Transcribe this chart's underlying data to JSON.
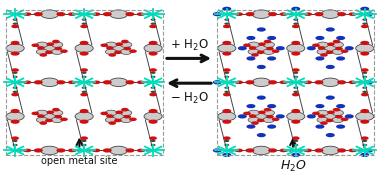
{
  "fig_width": 3.78,
  "fig_height": 1.77,
  "dpi": 100,
  "bg_color": "#ffffff",
  "colors": {
    "Cu_cross": "#00ddbb",
    "O_red": "#cc1111",
    "C_gray": "#444444",
    "H2O_blue": "#1133bb",
    "border": "#999999",
    "arrow_color": "#111111"
  },
  "fontsize_label": 7.0,
  "fontsize_arrow": 8.5,
  "fontsize_h2o": 9.0
}
